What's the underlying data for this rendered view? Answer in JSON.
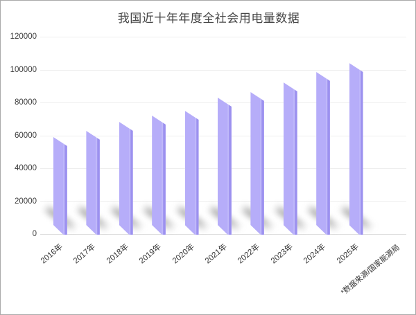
{
  "chart_data": {
    "type": "bar",
    "title": "我国近十年年度全社会用电量数据",
    "categories": [
      "2016年",
      "2017年",
      "2018年",
      "2019年",
      "2020年",
      "2021年",
      "2022年",
      "2023年",
      "2024年",
      "2025年"
    ],
    "values": [
      59200,
      63100,
      68400,
      72300,
      75100,
      83100,
      86400,
      92200,
      98500,
      104000
    ],
    "yticks": [
      120000,
      100000,
      80000,
      60000,
      40000,
      20000,
      0
    ],
    "ylim": [
      0,
      120000
    ],
    "xlabel": "",
    "ylabel": "",
    "grid": true,
    "legend": false,
    "source_note": "*数据来源/国家能源局",
    "colors": {
      "bar_face": "#b6adf9",
      "bar_edge_light": "#c9c2fb",
      "bar_side_dark": "#9c91ef",
      "bar_side_end": "#b0a5f5",
      "shadow": "rgba(118,118,118,0.5)",
      "gridline": "#ededed",
      "axis_text": "#3d3d3d",
      "title_text": "#474747"
    }
  }
}
